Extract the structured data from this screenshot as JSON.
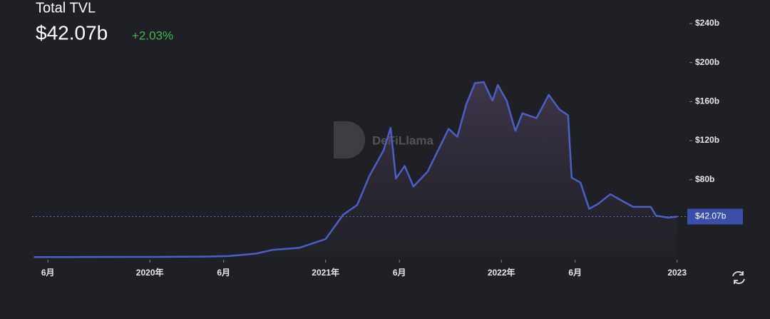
{
  "header": {
    "title": "Total TVL",
    "value": "$42.07b",
    "change": "+2.03%"
  },
  "chart_data": {
    "type": "area",
    "watermark": "DeFiLlama",
    "x": [
      2019.34,
      2019.5,
      2020.0,
      2020.3,
      2020.45,
      2020.6,
      2020.7,
      2020.85,
      2021.0,
      2021.1,
      2021.18,
      2021.25,
      2021.33,
      2021.37,
      2021.4,
      2021.45,
      2021.5,
      2021.58,
      2021.7,
      2021.75,
      2021.8,
      2021.85,
      2021.9,
      2021.95,
      2021.98,
      2022.03,
      2022.08,
      2022.12,
      2022.2,
      2022.27,
      2022.33,
      2022.38,
      2022.4,
      2022.45,
      2022.5,
      2022.55,
      2022.62,
      2022.7,
      2022.75,
      2022.85,
      2022.88,
      2022.95,
      2023.0
    ],
    "series": [
      {
        "name": "Total TVL",
        "color": "#4c5fc4",
        "values": [
          0.6,
          0.6,
          0.7,
          1.0,
          1.7,
          4,
          8,
          10,
          19,
          44,
          54,
          84,
          110,
          133,
          81,
          94,
          73,
          88,
          132,
          124,
          157,
          179,
          180,
          161,
          177,
          161,
          130,
          148,
          143,
          167,
          152,
          146,
          82,
          77,
          50,
          55,
          65,
          57,
          52,
          52,
          43,
          41,
          42.07
        ]
      }
    ],
    "xlim": [
      2019.33,
      2023.05
    ],
    "xticks": [
      {
        "value": 2019.42,
        "label": "6月"
      },
      {
        "value": 2020,
        "label": "2020年"
      },
      {
        "value": 2020.42,
        "label": "6月"
      },
      {
        "value": 2021,
        "label": "2021年"
      },
      {
        "value": 2021.42,
        "label": "6月"
      },
      {
        "value": 2022,
        "label": "2022年"
      },
      {
        "value": 2022.42,
        "label": "6月"
      },
      2023
    ],
    "ylim": [
      0,
      262
    ],
    "yticks": [
      {
        "value": 80,
        "label": "$80b"
      },
      {
        "value": 120,
        "label": "$120b"
      },
      {
        "value": 160,
        "label": "$160b"
      },
      {
        "value": 200,
        "label": "$200b"
      },
      {
        "value": 240,
        "label": "$240b"
      }
    ],
    "marker_line": {
      "value": 42.07,
      "label": "$42.07b"
    }
  }
}
